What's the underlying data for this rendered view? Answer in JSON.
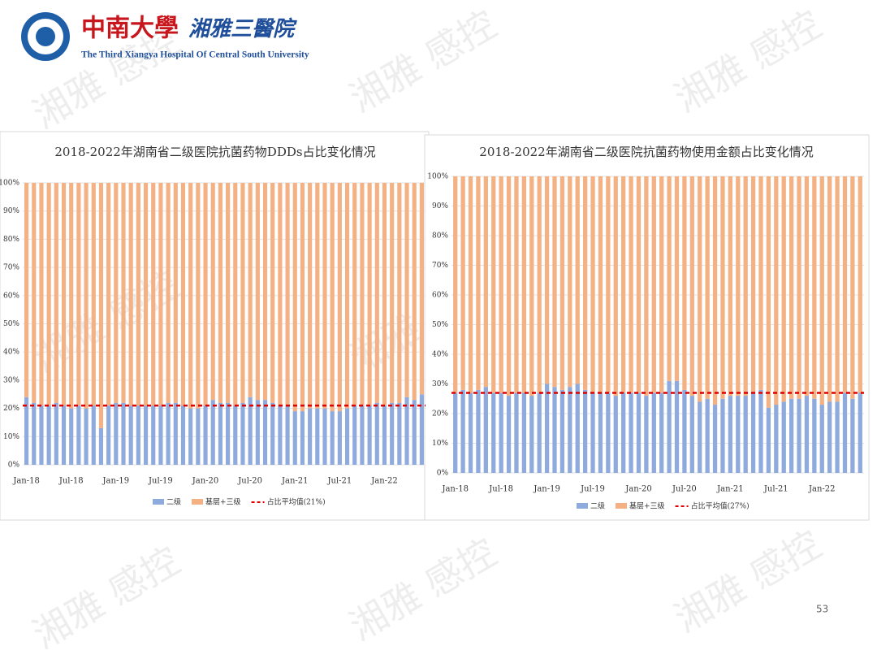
{
  "header": {
    "university": "中南大學",
    "hospital": "湘雅三醫院",
    "english": "The Third Xiangya Hospital Of Central South University"
  },
  "watermark": "湘雅 感控",
  "page_number": "53",
  "chart_data": [
    {
      "type": "stacked_bar",
      "title": "2018-2022年湖南省二级医院抗菌药物DDDs占比变化情况",
      "categories": [
        "Jan-18",
        null,
        null,
        null,
        null,
        null,
        "Jul-18",
        null,
        null,
        null,
        null,
        null,
        "Jan-19",
        null,
        null,
        null,
        null,
        null,
        "Jul-19",
        null,
        null,
        null,
        null,
        null,
        "Jan-20",
        null,
        null,
        null,
        null,
        null,
        "Jul-20",
        null,
        null,
        null,
        null,
        null,
        "Jan-21",
        null,
        null,
        null,
        null,
        null,
        "Jul-21",
        null,
        null,
        null,
        null,
        null,
        "Jan-22",
        null,
        null,
        null,
        null,
        null
      ],
      "series": [
        {
          "name": "二级",
          "color": "#8faadc",
          "values": [
            24,
            22,
            21,
            21,
            22,
            21,
            20,
            21,
            20,
            21,
            13,
            21,
            22,
            22,
            21,
            21,
            21,
            21,
            21,
            22,
            22,
            21,
            20,
            20,
            21,
            23,
            22,
            22,
            21,
            22,
            24,
            23,
            23,
            22,
            21,
            21,
            19,
            19,
            20,
            20,
            20,
            19,
            19,
            20,
            21,
            21,
            21,
            22,
            21,
            22,
            22,
            24,
            23,
            25
          ]
        },
        {
          "name": "基层+三级",
          "color": "#f4b183",
          "values": [
            76,
            78,
            79,
            79,
            78,
            79,
            80,
            79,
            80,
            79,
            87,
            79,
            78,
            78,
            79,
            79,
            79,
            79,
            79,
            78,
            78,
            79,
            80,
            80,
            79,
            77,
            78,
            78,
            79,
            78,
            76,
            77,
            77,
            78,
            79,
            79,
            81,
            81,
            80,
            80,
            80,
            81,
            81,
            80,
            79,
            79,
            79,
            78,
            79,
            78,
            78,
            76,
            77,
            75
          ]
        }
      ],
      "avg_line": {
        "name": "占比平均值(21%)",
        "value": 21,
        "color": "#e00000"
      },
      "ylim": [
        0,
        100
      ],
      "yticks": [
        {
          "value": 0,
          "label": "0%"
        },
        {
          "value": 10,
          "label": "10%"
        },
        {
          "value": 20,
          "label": "20%"
        },
        {
          "value": 30,
          "label": "30%"
        },
        {
          "value": 40,
          "label": "40%"
        },
        {
          "value": 50,
          "label": "50%"
        },
        {
          "value": 60,
          "label": "60%"
        },
        {
          "value": 70,
          "label": "70%"
        },
        {
          "value": 80,
          "label": "80%"
        },
        {
          "value": 90,
          "label": "90%"
        },
        {
          "value": 100,
          "label": "100%"
        }
      ],
      "grid": true,
      "legend": "bottom"
    },
    {
      "type": "stacked_bar",
      "title": "2018-2022年湖南省二级医院抗菌药物使用金额占比变化情况",
      "categories": [
        "Jan-18",
        null,
        null,
        null,
        null,
        null,
        "Jul-18",
        null,
        null,
        null,
        null,
        null,
        "Jan-19",
        null,
        null,
        null,
        null,
        null,
        "Jul-19",
        null,
        null,
        null,
        null,
        null,
        "Jan-20",
        null,
        null,
        null,
        null,
        null,
        "Jul-20",
        null,
        null,
        null,
        null,
        null,
        "Jan-21",
        null,
        null,
        null,
        null,
        null,
        "Jul-21",
        null,
        null,
        null,
        null,
        null,
        "Jan-22",
        null,
        null,
        null,
        null,
        null
      ],
      "series": [
        {
          "name": "二级",
          "color": "#8faadc",
          "values": [
            27,
            28,
            27,
            28,
            29,
            27,
            27,
            26,
            27,
            27,
            26,
            27,
            30,
            29,
            28,
            29,
            30,
            28,
            27,
            27,
            27,
            26,
            27,
            27,
            27,
            26,
            27,
            27,
            31,
            31,
            28,
            26,
            24,
            25,
            23,
            25,
            26,
            26,
            26,
            27,
            28,
            22,
            23,
            24,
            25,
            25,
            26,
            25,
            23,
            24,
            24,
            27,
            25,
            27
          ]
        },
        {
          "name": "基层+三级",
          "color": "#f4b183",
          "values": [
            73,
            72,
            73,
            72,
            71,
            73,
            73,
            74,
            73,
            73,
            74,
            73,
            70,
            71,
            72,
            71,
            70,
            72,
            73,
            73,
            73,
            74,
            73,
            73,
            73,
            74,
            73,
            73,
            69,
            69,
            72,
            74,
            76,
            75,
            77,
            75,
            74,
            74,
            74,
            73,
            72,
            78,
            77,
            76,
            75,
            75,
            74,
            75,
            77,
            76,
            76,
            73,
            75,
            73
          ]
        }
      ],
      "avg_line": {
        "name": "占比平均值(27%)",
        "value": 27,
        "color": "#e00000"
      },
      "ylim": [
        0,
        100
      ],
      "yticks": [
        {
          "value": 0,
          "label": "0%"
        },
        {
          "value": 10,
          "label": "10%"
        },
        {
          "value": 20,
          "label": "20%"
        },
        {
          "value": 30,
          "label": "30%"
        },
        {
          "value": 40,
          "label": "40%"
        },
        {
          "value": 50,
          "label": "50%"
        },
        {
          "value": 60,
          "label": "60%"
        },
        {
          "value": 70,
          "label": "70%"
        },
        {
          "value": 80,
          "label": "80%"
        },
        {
          "value": 90,
          "label": "90%"
        },
        {
          "value": 100,
          "label": "100%"
        }
      ],
      "grid": true,
      "legend": "bottom"
    }
  ]
}
